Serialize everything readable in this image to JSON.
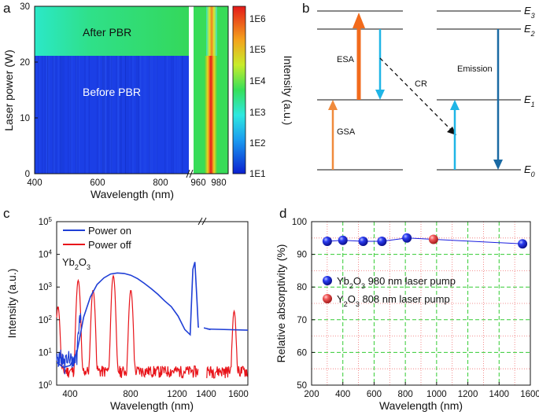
{
  "panels": {
    "a": "a",
    "b": "b",
    "c": "c",
    "d": "d"
  },
  "panel_a": {
    "xlabel": "Wavelength (nm)",
    "ylabel": "Laser power (W)",
    "xticks_left": [
      "400",
      "600",
      "800"
    ],
    "xticks_right": [
      "960",
      "980"
    ],
    "yticks": [
      "0",
      "10",
      "20",
      "30"
    ],
    "after_label": "After PBR",
    "before_label": "Before PBR",
    "colorbar_label": "Intensity (a.u.)",
    "colorbar_ticks": [
      "1E1",
      "1E2",
      "1E3",
      "1E4",
      "1E5",
      "1E6"
    ],
    "colors": {
      "after": "#2fd96a",
      "before": "#1b3fe6",
      "peak": "#e41a1a"
    }
  },
  "panel_b": {
    "levels": [
      "E3",
      "E2",
      "E1",
      "E0"
    ],
    "labels": {
      "esa": "ESA",
      "gsa": "GSA",
      "cr": "CR",
      "emission": "Emission"
    },
    "colors": {
      "esa": "#f26a1b",
      "gsa": "#f08a3c",
      "cyan": "#1fb5e6",
      "emission": "#1a6aa3"
    }
  },
  "chart_data": [
    {
      "type": "line",
      "panel": "c",
      "xlabel": "Wavelength (nm)",
      "ylabel": "Intensity (a.u.)",
      "xscale": "broken-linear",
      "yscale": "log",
      "ylim": [
        1,
        100000
      ],
      "xticks_left": [
        "400",
        "800",
        "1200"
      ],
      "xticks_right": [
        "1400",
        "1600"
      ],
      "ytick_exponents": [
        "0",
        "1",
        "2",
        "3",
        "4",
        "5"
      ],
      "annotation": "Yb2O3",
      "legend": [
        "Power on",
        "Power off"
      ],
      "series": [
        {
          "name": "Power on",
          "color": "#1f3fd6",
          "x": [
            250,
            300,
            350,
            400,
            450,
            500,
            550,
            600,
            650,
            700,
            750,
            800,
            850,
            900,
            950,
            1000,
            1050,
            1100,
            1150,
            1200,
            1240,
            1260,
            1275,
            1290,
            1300,
            1320,
            1360
          ],
          "y": [
            5,
            3.5,
            4,
            10,
            120,
            500,
            1200,
            1900,
            2500,
            2700,
            2600,
            2300,
            1800,
            1300,
            900,
            600,
            380,
            250,
            130,
            50,
            35,
            3500,
            5800,
            400,
            60,
            55,
            50
          ]
        },
        {
          "name": "Power off",
          "color": "#e8141a",
          "peaks_x": [
            260,
            410,
            520,
            670,
            800,
            1550
          ],
          "peaks_y": [
            250,
            1600,
            800,
            2200,
            800,
            180
          ],
          "baseline_y": 2.5
        }
      ]
    },
    {
      "type": "scatter",
      "panel": "d",
      "xlabel": "Wavelength (nm)",
      "ylabel": "Relative absorptivity (%)",
      "xlim": [
        200,
        1600
      ],
      "ylim": [
        50,
        100
      ],
      "xticks": [
        "200",
        "400",
        "600",
        "800",
        "1000",
        "1200",
        "1400",
        "1600"
      ],
      "yticks": [
        "50",
        "60",
        "70",
        "80",
        "90",
        "100"
      ],
      "legend_sub": [
        "Yb",
        "2",
        "O",
        "3",
        " 980 nm laser pump",
        "Y",
        "2",
        "O",
        "3",
        " 808 nm laser pump"
      ],
      "series": [
        {
          "name": "Yb2O3 980 nm laser pump",
          "color": "#1a1ee0",
          "x": [
            300,
            400,
            530,
            650,
            810,
            1550
          ],
          "y": [
            94.0,
            94.3,
            94.0,
            94.0,
            95.0,
            93.2
          ]
        },
        {
          "name": "Y2O3 808 nm laser pump",
          "color": "#f04848",
          "x": [
            980
          ],
          "y": [
            94.6
          ]
        }
      ]
    }
  ]
}
